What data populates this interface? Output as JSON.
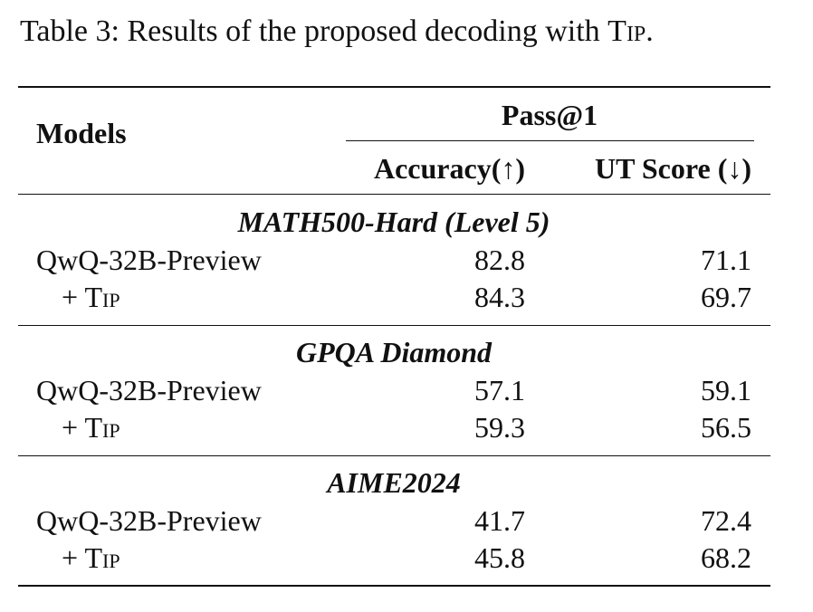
{
  "caption": {
    "text": "Table 3: Results of the proposed decoding with ",
    "method": "Tip",
    "end": "."
  },
  "table": {
    "header": {
      "models": "Models",
      "group": "Pass@1",
      "columns": [
        "Accuracy(↑)",
        "UT Score (↓)"
      ]
    },
    "sections": [
      {
        "title": "MATH500-Hard (Level 5)",
        "rows": [
          [
            "QwQ-32B-Preview",
            "82.8",
            "71.1"
          ],
          [
            "+ Tip",
            "84.3",
            "69.7"
          ]
        ]
      },
      {
        "title": "GPQA Diamond",
        "rows": [
          [
            "QwQ-32B-Preview",
            "57.1",
            "59.1"
          ],
          [
            "+ Tip",
            "59.3",
            "56.5"
          ]
        ]
      },
      {
        "title": "AIME2024",
        "rows": [
          [
            "QwQ-32B-Preview",
            "41.7",
            "72.4"
          ],
          [
            "+ Tip",
            "45.8",
            "68.2"
          ]
        ]
      }
    ]
  }
}
